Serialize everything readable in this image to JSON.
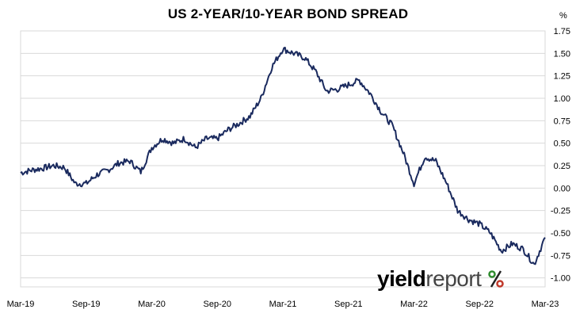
{
  "chart_data": {
    "type": "line",
    "title": "US 2-YEAR/10-YEAR BOND SPREAD",
    "unit": "%",
    "xlabel": "",
    "ylabel": "",
    "x_tick_labels": [
      "Mar-19",
      "Sep-19",
      "Mar-20",
      "Sep-20",
      "Mar-21",
      "Sep-21",
      "Mar-22",
      "Sep-22",
      "Mar-23"
    ],
    "y_tick_labels": [
      "1.75",
      "1.50",
      "1.25",
      "1.00",
      "0.75",
      "0.50",
      "0.25",
      "0.00",
      "-0.25",
      "-0.50",
      "-0.75",
      "-1.00"
    ],
    "ylim": [
      -1.1,
      1.75
    ],
    "xlim": [
      "2019-03",
      "2023-03"
    ],
    "grid": "horizontal",
    "y_axis_side": "right",
    "series": [
      {
        "color": "#1a2a5e",
        "points": [
          [
            "2019-03",
            0.17
          ],
          [
            "2019-04",
            0.2
          ],
          [
            "2019-05",
            0.22
          ],
          [
            "2019-06",
            0.25
          ],
          [
            "2019-07",
            0.23
          ],
          [
            "2019-08",
            0.05
          ],
          [
            "2019-09",
            0.05
          ],
          [
            "2019-10",
            0.15
          ],
          [
            "2019-11",
            0.2
          ],
          [
            "2019-12",
            0.28
          ],
          [
            "2020-01",
            0.3
          ],
          [
            "2020-02",
            0.18
          ],
          [
            "2020-03",
            0.45
          ],
          [
            "2020-04",
            0.55
          ],
          [
            "2020-05",
            0.5
          ],
          [
            "2020-06",
            0.55
          ],
          [
            "2020-07",
            0.45
          ],
          [
            "2020-08",
            0.55
          ],
          [
            "2020-09",
            0.55
          ],
          [
            "2020-10",
            0.65
          ],
          [
            "2020-11",
            0.72
          ],
          [
            "2020-12",
            0.8
          ],
          [
            "2021-01",
            1.0
          ],
          [
            "2021-02",
            1.35
          ],
          [
            "2021-03",
            1.55
          ],
          [
            "2021-04",
            1.5
          ],
          [
            "2021-05",
            1.45
          ],
          [
            "2021-06",
            1.3
          ],
          [
            "2021-07",
            1.08
          ],
          [
            "2021-08",
            1.1
          ],
          [
            "2021-09",
            1.15
          ],
          [
            "2021-10",
            1.2
          ],
          [
            "2021-11",
            1.05
          ],
          [
            "2021-12",
            0.85
          ],
          [
            "2022-01",
            0.7
          ],
          [
            "2022-02",
            0.4
          ],
          [
            "2022-03",
            0.05
          ],
          [
            "2022-04",
            0.35
          ],
          [
            "2022-05",
            0.3
          ],
          [
            "2022-06",
            0.05
          ],
          [
            "2022-07",
            -0.25
          ],
          [
            "2022-08",
            -0.35
          ],
          [
            "2022-09",
            -0.4
          ],
          [
            "2022-10",
            -0.5
          ],
          [
            "2022-11",
            -0.7
          ],
          [
            "2022-12",
            -0.62
          ],
          [
            "2023-01",
            -0.68
          ],
          [
            "2023-02",
            -0.85
          ],
          [
            "2023-03",
            -0.55
          ]
        ]
      }
    ],
    "logo_text": "yieldreport %"
  }
}
